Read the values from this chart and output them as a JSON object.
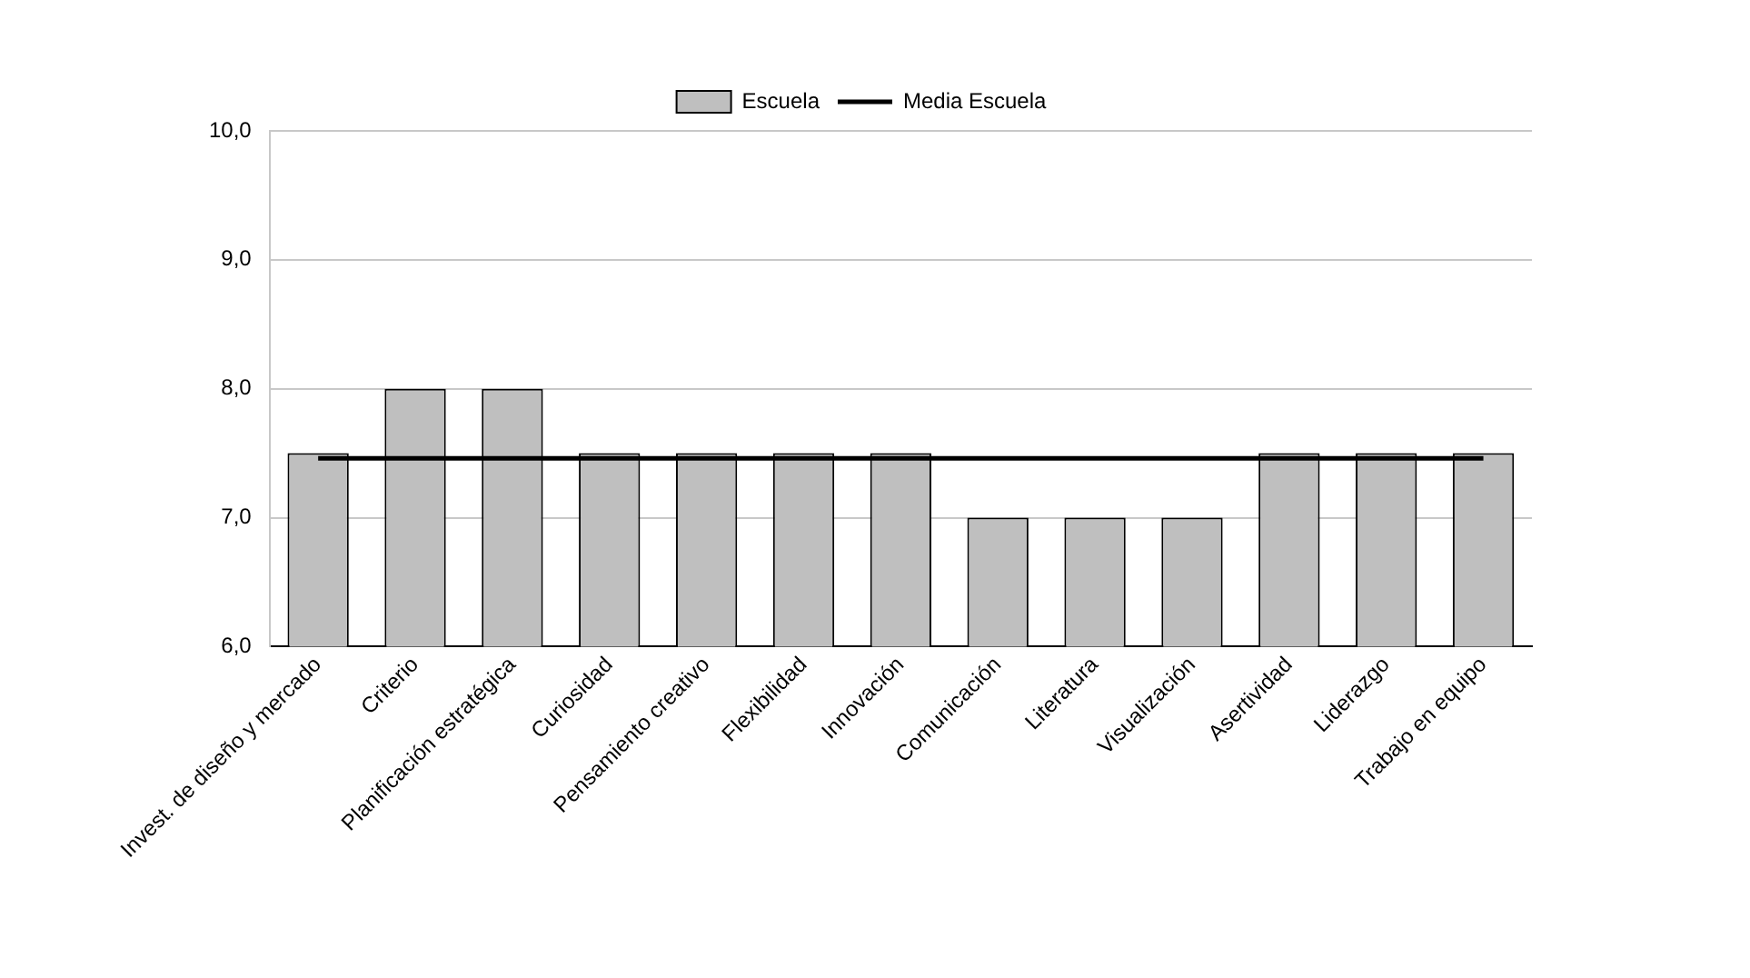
{
  "chart_data": {
    "type": "bar",
    "categories": [
      "Invest. de diseño y mercado",
      "Criterio",
      "Planificación estratégica",
      "Curiosidad",
      "Pensamiento creativo",
      "Flexibilidad",
      "Innovación",
      "Comunicación",
      "Literatura",
      "Visualización",
      "Asertividad",
      "Liderazgo",
      "Trabajo en equipo"
    ],
    "series": [
      {
        "name": "Escuela",
        "color": "#bfbfbf",
        "values": [
          7.5,
          8,
          8,
          7.5,
          7.5,
          7.5,
          7.5,
          7,
          7,
          7,
          7.5,
          7.5,
          7.5
        ]
      },
      {
        "name": "Media Escuela",
        "type": "line",
        "color": "#000000",
        "values": [
          7.46,
          7.46,
          7.46,
          7.46,
          7.46,
          7.46,
          7.46,
          7.46,
          7.46,
          7.46,
          7.46,
          7.46,
          7.46
        ]
      }
    ],
    "ylim": [
      6,
      10
    ],
    "yticks": [
      {
        "value": 6,
        "label": "6,0"
      },
      {
        "value": 7,
        "label": "7,0"
      },
      {
        "value": 8,
        "label": "8,0"
      },
      {
        "value": 9,
        "label": "9,0"
      },
      {
        "value": 10,
        "label": "10,0"
      }
    ],
    "grid": "y",
    "legend": "top",
    "marker": "none",
    "line_style": "solid"
  }
}
